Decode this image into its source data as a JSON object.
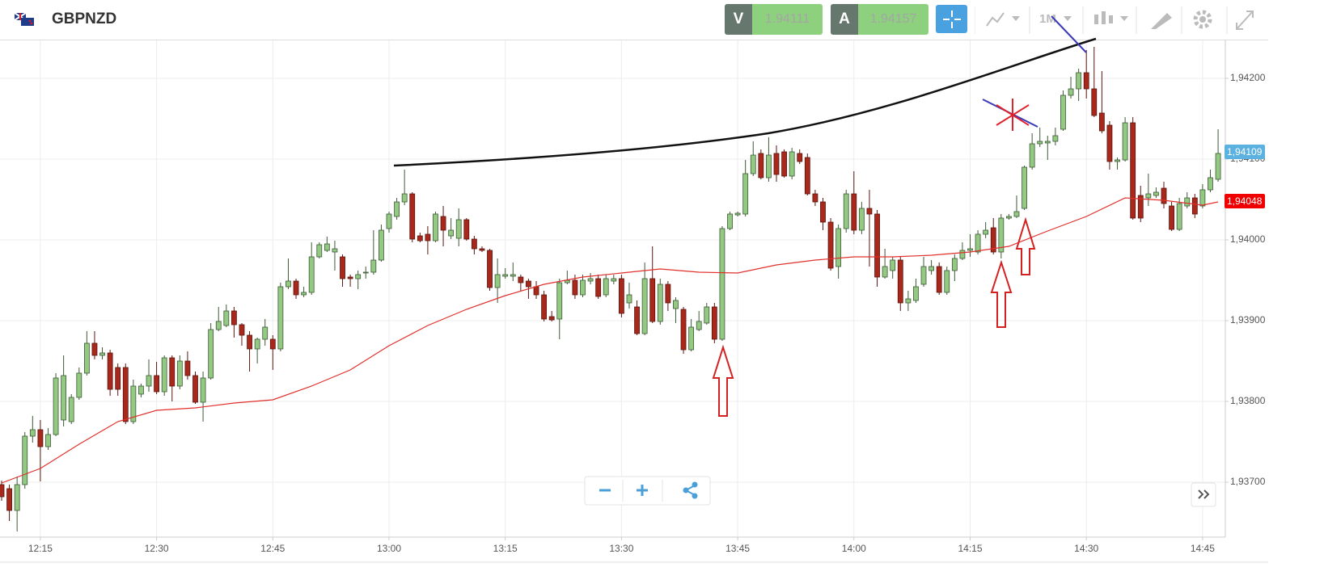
{
  "header": {
    "symbol": "GBPNZD",
    "bid_label": "V",
    "bid": "1.94111",
    "ask_label": "A",
    "ask": "1.94157",
    "timeframe": "1M"
  },
  "chart_data": {
    "type": "candlestick",
    "x": [
      "12:10",
      "12:11",
      "12:12",
      "12:13",
      "12:14",
      "12:15",
      "12:16",
      "12:17",
      "12:18",
      "12:19",
      "12:20",
      "12:21",
      "12:22",
      "12:23",
      "12:24",
      "12:25",
      "12:26",
      "12:27",
      "12:28",
      "12:29",
      "12:30",
      "12:31",
      "12:32",
      "12:33",
      "12:34",
      "12:35",
      "12:36",
      "12:37",
      "12:38",
      "12:39",
      "12:40",
      "12:41",
      "12:42",
      "12:43",
      "12:44",
      "12:45",
      "12:46",
      "12:47",
      "12:48",
      "12:49",
      "12:50",
      "12:51",
      "12:52",
      "12:53",
      "12:54",
      "12:55",
      "12:56",
      "12:57",
      "12:58",
      "12:59",
      "13:00",
      "13:01",
      "13:02",
      "13:03",
      "13:04",
      "13:05",
      "13:06",
      "13:07",
      "13:08",
      "13:09",
      "13:10",
      "13:11",
      "13:12",
      "13:13",
      "13:14",
      "13:15",
      "13:16",
      "13:17",
      "13:18",
      "13:19",
      "13:20",
      "13:21",
      "13:22",
      "13:23",
      "13:24",
      "13:25",
      "13:26",
      "13:27",
      "13:28",
      "13:29",
      "13:30",
      "13:31",
      "13:32",
      "13:33",
      "13:34",
      "13:35",
      "13:36",
      "13:37",
      "13:38",
      "13:39",
      "13:40",
      "13:41",
      "13:42",
      "13:43",
      "13:44",
      "13:45",
      "13:46",
      "13:47",
      "13:48",
      "13:49",
      "13:50",
      "13:51",
      "13:52",
      "13:53",
      "13:54",
      "13:55",
      "13:56",
      "13:57",
      "13:58",
      "13:59",
      "14:00",
      "14:01",
      "14:02",
      "14:03",
      "14:04",
      "14:05",
      "14:06",
      "14:07",
      "14:08",
      "14:09",
      "14:10",
      "14:11",
      "14:12",
      "14:13",
      "14:14",
      "14:15",
      "14:16",
      "14:17",
      "14:18",
      "14:19",
      "14:20",
      "14:21",
      "14:22",
      "14:23",
      "14:24",
      "14:25",
      "14:26",
      "14:27",
      "14:28",
      "14:29",
      "14:30",
      "14:31",
      "14:32",
      "14:33",
      "14:34",
      "14:35",
      "14:36",
      "14:37",
      "14:38",
      "14:39",
      "14:40",
      "14:41",
      "14:42",
      "14:43",
      "14:44",
      "14:45",
      "14:46",
      "14:47"
    ],
    "ohlc": [
      [
        1.93697,
        1.93702,
        1.93677,
        1.93682
      ],
      [
        1.93692,
        1.93697,
        1.93652,
        1.93665
      ],
      [
        1.93665,
        1.93707,
        1.93639,
        1.93697
      ],
      [
        1.93697,
        1.93762,
        1.93692,
        1.93757
      ],
      [
        1.93757,
        1.93782,
        1.93749,
        1.93765
      ],
      [
        1.93765,
        1.93777,
        1.93701,
        1.93744
      ],
      [
        1.93744,
        1.93767,
        1.9374,
        1.93759
      ],
      [
        1.93759,
        1.93835,
        1.93757,
        1.93829
      ],
      [
        1.93777,
        1.93857,
        1.93769,
        1.93832
      ],
      [
        1.93775,
        1.93809,
        1.93772,
        1.93805
      ],
      [
        1.93805,
        1.93842,
        1.93802,
        1.93835
      ],
      [
        1.93835,
        1.93887,
        1.93832,
        1.93872
      ],
      [
        1.93872,
        1.93887,
        1.93852,
        1.93857
      ],
      [
        1.93857,
        1.93867,
        1.93852,
        1.9386
      ],
      [
        1.9386,
        1.93864,
        1.93807,
        1.93815
      ],
      [
        1.93842,
        1.93847,
        1.93807,
        1.93815
      ],
      [
        1.93842,
        1.93847,
        1.93772,
        1.93775
      ],
      [
        1.93775,
        1.93827,
        1.93772,
        1.93819
      ],
      [
        1.93809,
        1.93822,
        1.93805,
        1.93819
      ],
      [
        1.93819,
        1.93852,
        1.93812,
        1.93832
      ],
      [
        1.93832,
        1.93849,
        1.93809,
        1.93812
      ],
      [
        1.93812,
        1.93857,
        1.93807,
        1.93854
      ],
      [
        1.93854,
        1.93857,
        1.938,
        1.93819
      ],
      [
        1.93819,
        1.93857,
        1.93815,
        1.9385
      ],
      [
        1.9385,
        1.93862,
        1.93827,
        1.93832
      ],
      [
        1.93832,
        1.93837,
        1.93797,
        1.93799
      ],
      [
        1.93799,
        1.93837,
        1.93775,
        1.93829
      ],
      [
        1.93829,
        1.93897,
        1.93827,
        1.93889
      ],
      [
        1.93889,
        1.93917,
        1.93887,
        1.93899
      ],
      [
        1.93894,
        1.9392,
        1.93892,
        1.93912
      ],
      [
        1.93912,
        1.93917,
        1.93879,
        1.93895
      ],
      [
        1.93895,
        1.93897,
        1.93869,
        1.93882
      ],
      [
        1.93882,
        1.93887,
        1.93837,
        1.93865
      ],
      [
        1.93865,
        1.93879,
        1.93847,
        1.93877
      ],
      [
        1.93877,
        1.93902,
        1.93869,
        1.93892
      ],
      [
        1.93877,
        1.93882,
        1.93839,
        1.93865
      ],
      [
        1.93865,
        1.93947,
        1.93862,
        1.93942
      ],
      [
        1.93942,
        1.93977,
        1.93939,
        1.93949
      ],
      [
        1.93949,
        1.93952,
        1.93927,
        1.93932
      ],
      [
        1.93932,
        1.93942,
        1.93929,
        1.93935
      ],
      [
        1.93935,
        1.93997,
        1.93932,
        1.93979
      ],
      [
        1.93979,
        1.93997,
        1.93977,
        1.93994
      ],
      [
        1.93987,
        1.94004,
        1.93985,
        1.93995
      ],
      [
        1.93985,
        1.93999,
        1.93962,
        1.93989
      ],
      [
        1.93979,
        1.93982,
        1.93942,
        1.93952
      ],
      [
        1.93954,
        1.93957,
        1.93942,
        1.93952
      ],
      [
        1.93952,
        1.93962,
        1.93939,
        1.93957
      ],
      [
        1.93959,
        1.93967,
        1.93952,
        1.9396
      ],
      [
        1.9396,
        1.94012,
        1.93957,
        1.93975
      ],
      [
        1.93975,
        1.94019,
        1.93973,
        1.94012
      ],
      [
        1.94014,
        1.94035,
        1.94009,
        1.94032
      ],
      [
        1.94029,
        1.94052,
        1.94025,
        1.94047
      ],
      [
        1.94047,
        1.94087,
        1.94043,
        1.94057
      ],
      [
        1.94057,
        1.94059,
        1.93997,
        1.94001
      ],
      [
        1.94005,
        1.94009,
        1.93997,
        1.93999
      ],
      [
        1.94007,
        1.94017,
        1.93982,
        1.93999
      ],
      [
        1.93999,
        1.94035,
        1.93997,
        1.94032
      ],
      [
        1.94029,
        1.94042,
        1.93992,
        1.94012
      ],
      [
        1.94005,
        1.94027,
        1.94001,
        1.94012
      ],
      [
        1.94002,
        1.94039,
        1.93992,
        1.94025
      ],
      [
        1.94025,
        1.94027,
        1.93999,
        1.94001
      ],
      [
        1.94001,
        1.94005,
        1.93982,
        1.93989
      ],
      [
        1.93989,
        1.93992,
        1.93985,
        1.93987
      ],
      [
        1.93987,
        1.93989,
        1.93937,
        1.93941
      ],
      [
        1.93941,
        1.93977,
        1.93922,
        1.93957
      ],
      [
        1.93955,
        1.93965,
        1.93952,
        1.93957
      ],
      [
        1.93955,
        1.93972,
        1.93949,
        1.93957
      ],
      [
        1.93954,
        1.93957,
        1.93937,
        1.93947
      ],
      [
        1.93949,
        1.93952,
        1.93927,
        1.93942
      ],
      [
        1.93942,
        1.93949,
        1.93927,
        1.93932
      ],
      [
        1.93932,
        1.93937,
        1.93899,
        1.93902
      ],
      [
        1.93905,
        1.93912,
        1.93899,
        1.93901
      ],
      [
        1.93902,
        1.93952,
        1.93877,
        1.93947
      ],
      [
        1.93947,
        1.93962,
        1.93945,
        1.9395
      ],
      [
        1.9395,
        1.93957,
        1.93927,
        1.93932
      ],
      [
        1.93932,
        1.93957,
        1.93929,
        1.9395
      ],
      [
        1.93949,
        1.93959,
        1.93945,
        1.93952
      ],
      [
        1.93952,
        1.93957,
        1.93927,
        1.9393
      ],
      [
        1.93932,
        1.93957,
        1.93929,
        1.93952
      ],
      [
        1.93949,
        1.93957,
        1.93945,
        1.93952
      ],
      [
        1.93952,
        1.93957,
        1.93904,
        1.93909
      ],
      [
        1.93922,
        1.93947,
        1.93915,
        1.93932
      ],
      [
        1.93917,
        1.93925,
        1.93882,
        1.93884
      ],
      [
        1.93884,
        1.93972,
        1.93882,
        1.93952
      ],
      [
        1.93952,
        1.93992,
        1.93897,
        1.93899
      ],
      [
        1.93899,
        1.93952,
        1.93895,
        1.93945
      ],
      [
        1.93945,
        1.93949,
        1.93912,
        1.93922
      ],
      [
        1.93915,
        1.93929,
        1.93897,
        1.93925
      ],
      [
        1.93914,
        1.93917,
        1.93859,
        1.93864
      ],
      [
        1.93864,
        1.93902,
        1.93862,
        1.93892
      ],
      [
        1.93889,
        1.93912,
        1.93887,
        1.93899
      ],
      [
        1.93897,
        1.93922,
        1.93895,
        1.93917
      ],
      [
        1.93917,
        1.93922,
        1.93872,
        1.93877
      ],
      [
        1.93877,
        1.94017,
        1.93875,
        1.94014
      ],
      [
        1.94014,
        1.94035,
        1.94012,
        1.94032
      ],
      [
        1.94031,
        1.94035,
        1.94029,
        1.94033
      ],
      [
        1.94032,
        1.94099,
        1.94029,
        1.94082
      ],
      [
        1.94082,
        1.94122,
        1.94079,
        1.94105
      ],
      [
        1.94107,
        1.94112,
        1.94075,
        1.94077
      ],
      [
        1.94077,
        1.94127,
        1.94072,
        1.94105
      ],
      [
        1.94107,
        1.94117,
        1.94072,
        1.94081
      ],
      [
        1.94109,
        1.94112,
        1.94077,
        1.94079
      ],
      [
        1.94079,
        1.94114,
        1.94075,
        1.94109
      ],
      [
        1.94107,
        1.94112,
        1.94094,
        1.94097
      ],
      [
        1.94102,
        1.94107,
        1.94055,
        1.94057
      ],
      [
        1.94057,
        1.94062,
        1.94042,
        1.94047
      ],
      [
        1.94047,
        1.94052,
        1.94012,
        1.94022
      ],
      [
        1.94022,
        1.94027,
        1.93962,
        1.93965
      ],
      [
        1.93967,
        1.94019,
        1.93952,
        1.94014
      ],
      [
        1.94014,
        1.94062,
        1.94009,
        1.94057
      ],
      [
        1.94057,
        1.94085,
        1.94007,
        1.94012
      ],
      [
        1.94012,
        1.94047,
        1.94007,
        1.94039
      ],
      [
        1.94039,
        1.94062,
        1.93967,
        1.94032
      ],
      [
        1.94032,
        1.94037,
        1.93942,
        1.93954
      ],
      [
        1.93954,
        1.93989,
        1.93952,
        1.93967
      ],
      [
        1.93962,
        1.93979,
        1.93952,
        1.93975
      ],
      [
        1.93975,
        1.93979,
        1.93912,
        1.93922
      ],
      [
        1.93922,
        1.93937,
        1.93912,
        1.93927
      ],
      [
        1.93925,
        1.93952,
        1.93922,
        1.93942
      ],
      [
        1.93945,
        1.93979,
        1.93942,
        1.93967
      ],
      [
        1.93962,
        1.93975,
        1.93957,
        1.93967
      ],
      [
        1.93967,
        1.93972,
        1.93932,
        1.93935
      ],
      [
        1.93935,
        1.93967,
        1.93932,
        1.93962
      ],
      [
        1.93962,
        1.93982,
        1.93949,
        1.93977
      ],
      [
        1.93977,
        1.93997,
        1.93975,
        1.93987
      ],
      [
        1.93987,
        1.94007,
        1.93979,
        1.93989
      ],
      [
        1.93985,
        1.94012,
        1.93982,
        1.94007
      ],
      [
        1.94007,
        1.94022,
        1.94002,
        1.94012
      ],
      [
        1.94015,
        1.94027,
        1.93982,
        1.93985
      ],
      [
        1.93985,
        1.94032,
        1.93977,
        1.94027
      ],
      [
        1.94027,
        1.94032,
        1.94025,
        1.94029
      ],
      [
        1.94029,
        1.94055,
        1.94027,
        1.94035
      ],
      [
        1.94039,
        1.94092,
        1.94037,
        1.9409
      ],
      [
        1.9409,
        1.94132,
        1.94087,
        1.94119
      ],
      [
        1.94119,
        1.94139,
        1.94115,
        1.94122
      ],
      [
        1.9412,
        1.94129,
        1.94099,
        1.94122
      ],
      [
        1.94122,
        1.94139,
        1.94117,
        1.94129
      ],
      [
        1.94137,
        1.94185,
        1.94135,
        1.94179
      ],
      [
        1.94179,
        1.94202,
        1.94175,
        1.94187
      ],
      [
        1.94187,
        1.94212,
        1.94172,
        1.94207
      ],
      [
        1.94207,
        1.94235,
        1.94175,
        1.94187
      ],
      [
        1.94187,
        1.94239,
        1.94152,
        1.94154
      ],
      [
        1.94157,
        1.94209,
        1.94132,
        1.94135
      ],
      [
        1.94142,
        1.94147,
        1.94087,
        1.94097
      ],
      [
        1.94097,
        1.94102,
        1.94087,
        1.94099
      ],
      [
        1.94099,
        1.94152,
        1.94097,
        1.94145
      ],
      [
        1.94145,
        1.94152,
        1.94025,
        1.94027
      ],
      [
        1.94055,
        1.94067,
        1.94022,
        1.94027
      ],
      [
        1.94052,
        1.94082,
        1.94042,
        1.94057
      ],
      [
        1.94055,
        1.94065,
        1.94052,
        1.94059
      ],
      [
        1.94064,
        1.94072,
        1.94039,
        1.94045
      ],
      [
        1.94042,
        1.94047,
        1.94011,
        1.94013
      ],
      [
        1.94013,
        1.94052,
        1.94011,
        1.94045
      ],
      [
        1.94042,
        1.94059,
        1.94039,
        1.94052
      ],
      [
        1.94052,
        1.94057,
        1.94027,
        1.94032
      ],
      [
        1.94042,
        1.94069,
        1.94039,
        1.94062
      ],
      [
        1.94062,
        1.94087,
        1.94059,
        1.94077
      ],
      [
        1.94075,
        1.94137,
        1.94072,
        1.94107
      ]
    ],
    "up_color": "#93c983",
    "down_color": "#a8281c",
    "up_edge": "#3d5a35",
    "down_edge": "#5a150e",
    "lines": [
      {
        "color": "#e0302c",
        "x": [
          "12:10",
          "12:15",
          "12:20",
          "12:25",
          "12:30",
          "12:35",
          "12:40",
          "12:45",
          "12:50",
          "12:55",
          "13:00",
          "13:05",
          "13:10",
          "13:15",
          "13:20",
          "13:25",
          "13:30",
          "13:35",
          "13:40",
          "13:45",
          "13:50",
          "13:55",
          "14:00",
          "14:05",
          "14:10",
          "14:15",
          "14:20",
          "14:25",
          "14:30",
          "14:35",
          "14:40",
          "14:45",
          "14:47"
        ],
        "values": [
          1.93699,
          1.93717,
          1.93747,
          1.93775,
          1.93789,
          1.93792,
          1.93798,
          1.93802,
          1.93819,
          1.93839,
          1.93869,
          1.93894,
          1.93914,
          1.93931,
          1.93945,
          1.93954,
          1.93959,
          1.93964,
          1.9396,
          1.93959,
          1.93969,
          1.93975,
          1.93979,
          1.93979,
          1.93981,
          1.93985,
          1.93992,
          1.94011,
          1.94029,
          1.94052,
          1.94049,
          1.94043,
          1.94047
        ]
      }
    ],
    "price_labels": [
      {
        "value": 1.94109,
        "label": "1,94109",
        "color": "#5bb1df"
      },
      {
        "value": 1.94048,
        "label": "1,94048",
        "color": "#f00000"
      }
    ],
    "ylim": [
      1.93632,
      1.94247
    ],
    "yticks": [
      {
        "value": 1.937,
        "label": "1,93700"
      },
      {
        "value": 1.938,
        "label": "1,93800"
      },
      {
        "value": 1.939,
        "label": "1,93900"
      },
      {
        "value": 1.94,
        "label": "1,94000"
      },
      {
        "value": 1.941,
        "label": "1,94100"
      },
      {
        "value": 1.942,
        "label": "1,94200"
      }
    ],
    "xticks": [
      "12:15",
      "12:30",
      "12:45",
      "13:00",
      "13:15",
      "13:30",
      "13:45",
      "14:00",
      "14:15",
      "14:30",
      "14:45"
    ],
    "grid": true
  }
}
